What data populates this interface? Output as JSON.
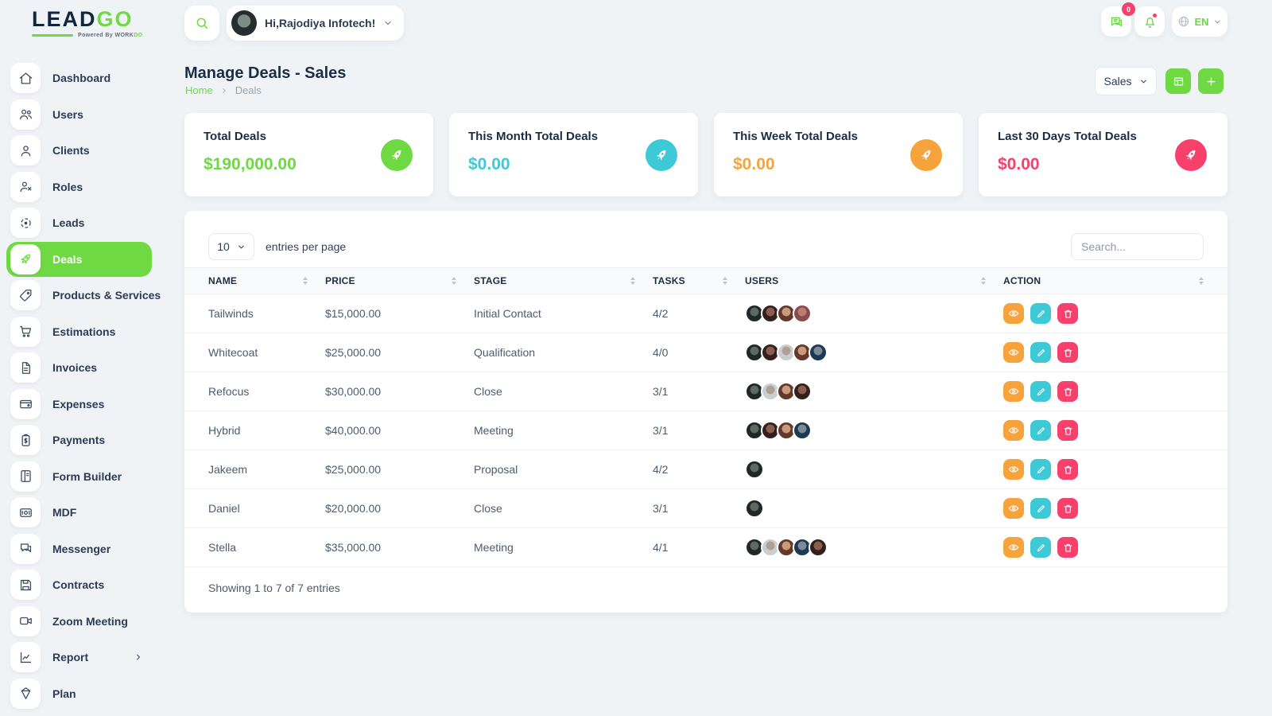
{
  "brand": {
    "lead": "LEAD",
    "go": "GO",
    "powered_by": "Powered By",
    "work": "WORK",
    "do": "DO"
  },
  "topbar": {
    "search_icon": "search-icon",
    "greeting": "Hi,Rajodiya Infotech!",
    "message_badge": "0",
    "message_icon": "messages-icon",
    "bell_icon": "bell-icon",
    "globe_icon": "globe-icon",
    "language": "EN"
  },
  "page": {
    "title": "Manage Deals - Sales",
    "breadcrumb": {
      "home": "Home",
      "current": "Deals"
    },
    "pipeline": "Sales",
    "grid_button_icon": "grid-view-icon",
    "add_button_icon": "plus-icon"
  },
  "stats": [
    {
      "label": "Total Deals",
      "value": "$190,000.00",
      "color": "#6fd943",
      "icon": "rocket-icon"
    },
    {
      "label": "This Month Total Deals",
      "value": "$0.00",
      "color": "#3ec9d6",
      "icon": "rocket-icon"
    },
    {
      "label": "This Week Total Deals",
      "value": "$0.00",
      "color": "#f7a33c",
      "icon": "rocket-icon"
    },
    {
      "label": "Last 30 Days Total Deals",
      "value": "$0.00",
      "color": "#f7406b",
      "icon": "rocket-icon"
    }
  ],
  "deals_table": {
    "entries_per_page": "10",
    "entries_label": "entries per page",
    "search_placeholder": "Search...",
    "columns": [
      "NAME",
      "PRICE",
      "STAGE",
      "TASKS",
      "USERS",
      "ACTION"
    ],
    "rows": [
      {
        "name": "Tailwinds",
        "price": "$15,000.00",
        "stage": "Initial Contact",
        "tasks": "4/2",
        "users": [
          0,
          1,
          2,
          3
        ]
      },
      {
        "name": "Whitecoat",
        "price": "$25,000.00",
        "stage": "Qualification",
        "tasks": "4/0",
        "users": [
          0,
          1,
          4,
          2,
          5
        ]
      },
      {
        "name": "Refocus",
        "price": "$30,000.00",
        "stage": "Close",
        "tasks": "3/1",
        "users": [
          0,
          4,
          2,
          1
        ]
      },
      {
        "name": "Hybrid",
        "price": "$40,000.00",
        "stage": "Meeting",
        "tasks": "3/1",
        "users": [
          0,
          1,
          2,
          5
        ]
      },
      {
        "name": "Jakeem",
        "price": "$25,000.00",
        "stage": "Proposal",
        "tasks": "4/2",
        "users": [
          0
        ]
      },
      {
        "name": "Daniel",
        "price": "$20,000.00",
        "stage": "Close",
        "tasks": "3/1",
        "users": [
          0
        ]
      },
      {
        "name": "Stella",
        "price": "$35,000.00",
        "stage": "Meeting",
        "tasks": "4/1",
        "users": [
          0,
          4,
          2,
          5,
          1
        ]
      }
    ],
    "actions": [
      "eye-icon",
      "pencil-icon",
      "trash-icon"
    ],
    "footer": "Showing 1 to 7 of 7 entries"
  },
  "sidebar": {
    "items": [
      {
        "label": "Dashboard",
        "icon": "home-icon"
      },
      {
        "label": "Users",
        "icon": "users-icon"
      },
      {
        "label": "Clients",
        "icon": "clients-icon"
      },
      {
        "label": "Roles",
        "icon": "roles-icon"
      },
      {
        "label": "Leads",
        "icon": "leads-icon"
      },
      {
        "label": "Deals",
        "icon": "deals-rocket-icon",
        "active": true
      },
      {
        "label": "Products & Services",
        "icon": "products-services-icon"
      },
      {
        "label": "Estimations",
        "icon": "estimations-icon"
      },
      {
        "label": "Invoices",
        "icon": "invoices-icon"
      },
      {
        "label": "Expenses",
        "icon": "expenses-icon"
      },
      {
        "label": "Payments",
        "icon": "payments-icon"
      },
      {
        "label": "Form Builder",
        "icon": "form-builder-icon"
      },
      {
        "label": "MDF",
        "icon": "mdf-icon"
      },
      {
        "label": "Messenger",
        "icon": "messenger-icon"
      },
      {
        "label": "Contracts",
        "icon": "contracts-icon"
      },
      {
        "label": "Zoom Meeting",
        "icon": "zoom-meeting-icon"
      },
      {
        "label": "Report",
        "icon": "report-icon",
        "chevron": true
      },
      {
        "label": "Plan",
        "icon": "plan-icon"
      }
    ]
  },
  "colors": {
    "primary_green": "#6fd943",
    "cyan": "#3ec9d6",
    "orange": "#f7a33c",
    "pink": "#f7406b"
  }
}
